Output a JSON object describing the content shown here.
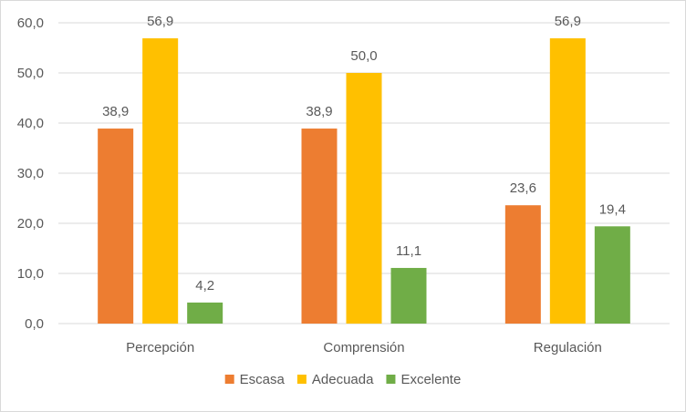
{
  "chart_data": {
    "type": "bar",
    "title": "",
    "xlabel": "",
    "ylabel": "",
    "categories": [
      "Percepción",
      "Comprensión",
      "Regulación"
    ],
    "series": [
      {
        "name": "Escasa",
        "color": "#ED7D31",
        "values": [
          38.9,
          38.9,
          23.6
        ],
        "labels": [
          "38,9",
          "38,9",
          "23,6"
        ]
      },
      {
        "name": "Adecuada",
        "color": "#FFC000",
        "values": [
          56.9,
          50.0,
          56.9
        ],
        "labels": [
          "56,9",
          "50,0",
          "56,9"
        ]
      },
      {
        "name": "Excelente",
        "color": "#70AD47",
        "values": [
          4.2,
          11.1,
          19.4
        ],
        "labels": [
          "4,2",
          "11,1",
          "19,4"
        ]
      }
    ],
    "ylim": [
      0,
      60
    ],
    "yticks": [
      0,
      10,
      20,
      30,
      40,
      50,
      60
    ],
    "ytick_labels": [
      "0,0",
      "10,0",
      "20,0",
      "30,0",
      "40,0",
      "50,0",
      "60,0"
    ],
    "grid": true,
    "legend": "bottom-center",
    "gridline_color": "#d9d9d9"
  }
}
